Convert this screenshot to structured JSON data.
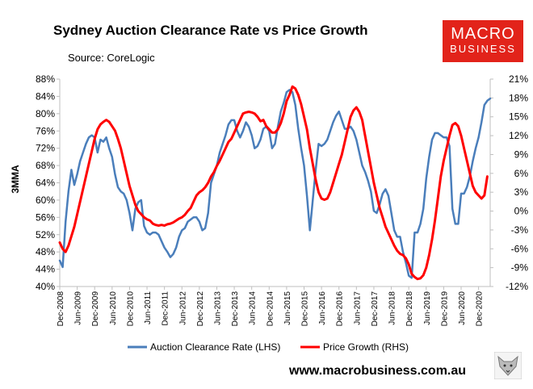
{
  "header": {
    "title": "Sydney Auction Clearance Rate vs Price Growth",
    "source": "Source: CoreLogic"
  },
  "logo": {
    "line1": "MACRO",
    "line2": "BUSINESS"
  },
  "footer": {
    "url": "www.macrobusiness.com.au"
  },
  "chart_data": {
    "type": "line",
    "title": "Sydney Auction Clearance Rate vs Price Growth",
    "ylabel": "3MMA",
    "y_left": {
      "min": 40,
      "max": 88,
      "step": 4,
      "ticks": [
        "40%",
        "44%",
        "48%",
        "52%",
        "56%",
        "60%",
        "64%",
        "68%",
        "72%",
        "76%",
        "80%",
        "84%",
        "88%"
      ]
    },
    "y_right": {
      "min": -12,
      "max": 21,
      "step": 3,
      "ticks": [
        "-12%",
        "-9%",
        "-6%",
        "-3%",
        "0%",
        "3%",
        "6%",
        "9%",
        "12%",
        "15%",
        "18%",
        "21%"
      ]
    },
    "x_ticks": [
      "Dec-2008",
      "Jun-2009",
      "Dec-2009",
      "Jun-2010",
      "Dec-2010",
      "Jun-2011",
      "Dec-2011",
      "Jun-2012",
      "Dec-2012",
      "Jun-2013",
      "Dec-2013",
      "Jun-2014",
      "Dec-2014",
      "Jun-2015",
      "Dec-2015",
      "Jun-2016",
      "Dec-2016",
      "Jun-2017",
      "Dec-2017",
      "Jun-2018",
      "Dec-2018",
      "Jun-2019",
      "Dec-2019",
      "Jun-2020",
      "Dec-2020"
    ],
    "x_range_months": [
      0,
      148
    ],
    "series": [
      {
        "name": "Auction Clearance Rate (LHS)",
        "axis": "left",
        "color": "#4a7ebb",
        "points": [
          [
            0,
            46
          ],
          [
            1,
            44.5
          ],
          [
            2,
            55
          ],
          [
            3,
            62
          ],
          [
            4,
            67
          ],
          [
            5,
            63.5
          ],
          [
            6,
            66
          ],
          [
            7,
            69
          ],
          [
            8,
            71
          ],
          [
            9,
            73
          ],
          [
            10,
            74.5
          ],
          [
            11,
            75
          ],
          [
            12,
            74.5
          ],
          [
            13,
            71
          ],
          [
            14,
            74
          ],
          [
            15,
            73.5
          ],
          [
            16,
            74.5
          ],
          [
            17,
            72
          ],
          [
            18,
            70
          ],
          [
            19,
            66
          ],
          [
            20,
            63
          ],
          [
            21,
            62
          ],
          [
            22,
            61.5
          ],
          [
            23,
            60
          ],
          [
            24,
            57
          ],
          [
            25,
            53
          ],
          [
            26,
            58
          ],
          [
            27,
            59.5
          ],
          [
            28,
            60
          ],
          [
            29,
            54
          ],
          [
            30,
            52.5
          ],
          [
            31,
            52
          ],
          [
            32,
            52.5
          ],
          [
            33,
            52.5
          ],
          [
            34,
            52
          ],
          [
            35,
            50.5
          ],
          [
            36,
            49
          ],
          [
            37,
            48
          ],
          [
            38,
            46.8
          ],
          [
            39,
            47.5
          ],
          [
            40,
            49
          ],
          [
            41,
            51.5
          ],
          [
            42,
            53
          ],
          [
            43,
            53.5
          ],
          [
            44,
            55
          ],
          [
            45,
            55.5
          ],
          [
            46,
            56
          ],
          [
            47,
            56
          ],
          [
            48,
            55
          ],
          [
            49,
            53
          ],
          [
            50,
            53.5
          ],
          [
            51,
            57
          ],
          [
            52,
            64
          ],
          [
            53,
            66
          ],
          [
            54,
            68
          ],
          [
            55,
            71
          ],
          [
            56,
            73
          ],
          [
            57,
            75
          ],
          [
            58,
            77.5
          ],
          [
            59,
            78.5
          ],
          [
            60,
            78.5
          ],
          [
            61,
            76
          ],
          [
            62,
            74.5
          ],
          [
            63,
            76
          ],
          [
            64,
            78
          ],
          [
            65,
            77
          ],
          [
            66,
            75
          ],
          [
            67,
            72
          ],
          [
            68,
            72.5
          ],
          [
            69,
            74
          ],
          [
            70,
            76.5
          ],
          [
            71,
            77
          ],
          [
            72,
            76
          ],
          [
            73,
            72
          ],
          [
            74,
            73
          ],
          [
            75,
            77
          ],
          [
            76,
            80.5
          ],
          [
            77,
            82.5
          ],
          [
            78,
            85
          ],
          [
            79,
            85.5
          ],
          [
            80,
            85
          ],
          [
            81,
            82
          ],
          [
            82,
            76.5
          ],
          [
            83,
            72
          ],
          [
            84,
            68
          ],
          [
            85,
            61
          ],
          [
            86,
            53
          ],
          [
            87,
            60
          ],
          [
            88,
            67
          ],
          [
            89,
            73
          ],
          [
            90,
            72.5
          ],
          [
            91,
            73
          ],
          [
            92,
            74
          ],
          [
            93,
            76
          ],
          [
            94,
            78
          ],
          [
            95,
            79.5
          ],
          [
            96,
            80.5
          ],
          [
            97,
            78.5
          ],
          [
            98,
            76.5
          ],
          [
            99,
            76.5
          ],
          [
            100,
            77
          ],
          [
            101,
            76
          ],
          [
            102,
            74
          ],
          [
            103,
            71
          ],
          [
            104,
            68
          ],
          [
            105,
            66.5
          ],
          [
            106,
            64.5
          ],
          [
            107,
            62
          ],
          [
            108,
            57.5
          ],
          [
            109,
            57
          ],
          [
            110,
            59
          ],
          [
            111,
            61.5
          ],
          [
            112,
            62.5
          ],
          [
            113,
            61
          ],
          [
            114,
            57
          ],
          [
            115,
            53
          ],
          [
            116,
            51.5
          ],
          [
            117,
            51.5
          ],
          [
            118,
            48
          ],
          [
            119,
            45.5
          ],
          [
            120,
            42.5
          ],
          [
            121,
            42
          ],
          [
            122,
            52.5
          ],
          [
            123,
            52.5
          ],
          [
            124,
            54.5
          ],
          [
            125,
            58
          ],
          [
            126,
            65
          ],
          [
            127,
            70
          ],
          [
            128,
            74
          ],
          [
            129,
            75.5
          ],
          [
            130,
            75.5
          ],
          [
            131,
            75
          ],
          [
            132,
            74.5
          ],
          [
            133,
            74.5
          ],
          [
            134,
            72.5
          ],
          [
            135,
            58
          ],
          [
            136,
            54.5
          ],
          [
            137,
            54.5
          ],
          [
            138,
            61.5
          ],
          [
            139,
            61.5
          ],
          [
            140,
            63
          ],
          [
            141,
            65.5
          ],
          [
            142,
            69
          ],
          [
            143,
            72
          ],
          [
            144,
            74.5
          ],
          [
            145,
            78
          ],
          [
            146,
            82
          ],
          [
            147,
            83
          ],
          [
            148,
            83.5
          ]
        ]
      },
      {
        "name": "Price Growth (RHS)",
        "axis": "right",
        "color": "#ff0000",
        "points": [
          [
            0,
            -5
          ],
          [
            1,
            -6
          ],
          [
            2,
            -6.5
          ],
          [
            3,
            -5.5
          ],
          [
            4,
            -4
          ],
          [
            5,
            -2.5
          ],
          [
            6,
            -0.5
          ],
          [
            7,
            1.5
          ],
          [
            8,
            3.5
          ],
          [
            9,
            5.5
          ],
          [
            10,
            7.5
          ],
          [
            11,
            9.5
          ],
          [
            12,
            11.5
          ],
          [
            13,
            13
          ],
          [
            14,
            13.8
          ],
          [
            15,
            14.2
          ],
          [
            16,
            14.5
          ],
          [
            17,
            14.2
          ],
          [
            18,
            13.5
          ],
          [
            19,
            12.8
          ],
          [
            20,
            11.5
          ],
          [
            21,
            10
          ],
          [
            22,
            8
          ],
          [
            23,
            6
          ],
          [
            24,
            4
          ],
          [
            25,
            2.5
          ],
          [
            26,
            1
          ],
          [
            27,
            0
          ],
          [
            28,
            -0.5
          ],
          [
            29,
            -1
          ],
          [
            30,
            -1.3
          ],
          [
            31,
            -1.5
          ],
          [
            32,
            -2
          ],
          [
            33,
            -2.2
          ],
          [
            34,
            -2.3
          ],
          [
            35,
            -2.2
          ],
          [
            36,
            -2.3
          ],
          [
            37,
            -2.1
          ],
          [
            38,
            -2
          ],
          [
            39,
            -1.8
          ],
          [
            40,
            -1.5
          ],
          [
            41,
            -1.2
          ],
          [
            42,
            -1
          ],
          [
            43,
            -0.6
          ],
          [
            44,
            0
          ],
          [
            45,
            0.5
          ],
          [
            46,
            1.5
          ],
          [
            47,
            2.5
          ],
          [
            48,
            3
          ],
          [
            49,
            3.3
          ],
          [
            50,
            3.8
          ],
          [
            51,
            4.5
          ],
          [
            52,
            5.5
          ],
          [
            53,
            6.2
          ],
          [
            54,
            7.2
          ],
          [
            55,
            8
          ],
          [
            56,
            9
          ],
          [
            57,
            10
          ],
          [
            58,
            11
          ],
          [
            59,
            11.5
          ],
          [
            60,
            12.5
          ],
          [
            61,
            13.5
          ],
          [
            62,
            14.5
          ],
          [
            63,
            15.5
          ],
          [
            64,
            15.7
          ],
          [
            65,
            15.8
          ],
          [
            66,
            15.7
          ],
          [
            67,
            15.5
          ],
          [
            68,
            15
          ],
          [
            69,
            14.3
          ],
          [
            70,
            14.5
          ],
          [
            71,
            13.5
          ],
          [
            72,
            13
          ],
          [
            73,
            12.5
          ],
          [
            74,
            12.5
          ],
          [
            75,
            13
          ],
          [
            76,
            14
          ],
          [
            77,
            15.5
          ],
          [
            78,
            17.5
          ],
          [
            79,
            18.5
          ],
          [
            80,
            19.8
          ],
          [
            81,
            19.5
          ],
          [
            82,
            18.5
          ],
          [
            83,
            17
          ],
          [
            84,
            15
          ],
          [
            85,
            13
          ],
          [
            86,
            10
          ],
          [
            87,
            7.5
          ],
          [
            88,
            5
          ],
          [
            89,
            3
          ],
          [
            90,
            2
          ],
          [
            91,
            1.8
          ],
          [
            92,
            2
          ],
          [
            93,
            3
          ],
          [
            94,
            4.5
          ],
          [
            95,
            6
          ],
          [
            96,
            7.5
          ],
          [
            97,
            9
          ],
          [
            98,
            11
          ],
          [
            99,
            13
          ],
          [
            100,
            15
          ],
          [
            101,
            16
          ],
          [
            102,
            16.5
          ],
          [
            103,
            15.8
          ],
          [
            104,
            14.5
          ],
          [
            105,
            12
          ],
          [
            106,
            9.5
          ],
          [
            107,
            7
          ],
          [
            108,
            4.5
          ],
          [
            109,
            2.5
          ],
          [
            110,
            0.5
          ],
          [
            111,
            -1
          ],
          [
            112,
            -2.5
          ],
          [
            113,
            -3.5
          ],
          [
            114,
            -4.5
          ],
          [
            115,
            -5.5
          ],
          [
            116,
            -6.3
          ],
          [
            117,
            -6.8
          ],
          [
            118,
            -7
          ],
          [
            119,
            -7.5
          ],
          [
            120,
            -8.5
          ],
          [
            121,
            -10
          ],
          [
            122,
            -10.5
          ],
          [
            123,
            -10.8
          ],
          [
            124,
            -10.7
          ],
          [
            125,
            -10.2
          ],
          [
            126,
            -9
          ],
          [
            127,
            -7
          ],
          [
            128,
            -4.5
          ],
          [
            129,
            -1.5
          ],
          [
            130,
            2
          ],
          [
            131,
            5.5
          ],
          [
            132,
            8
          ],
          [
            133,
            10
          ],
          [
            134,
            12
          ],
          [
            135,
            13.7
          ],
          [
            136,
            14
          ],
          [
            137,
            13.5
          ],
          [
            138,
            12
          ],
          [
            139,
            10
          ],
          [
            140,
            8
          ],
          [
            141,
            6
          ],
          [
            142,
            4
          ],
          [
            143,
            3
          ],
          [
            144,
            2.5
          ],
          [
            145,
            2
          ],
          [
            146,
            2.5
          ],
          [
            147,
            5.5
          ]
        ]
      }
    ],
    "legend": [
      "Auction Clearance Rate (LHS)",
      "Price Growth (RHS)"
    ],
    "legend_position": "bottom-center"
  }
}
